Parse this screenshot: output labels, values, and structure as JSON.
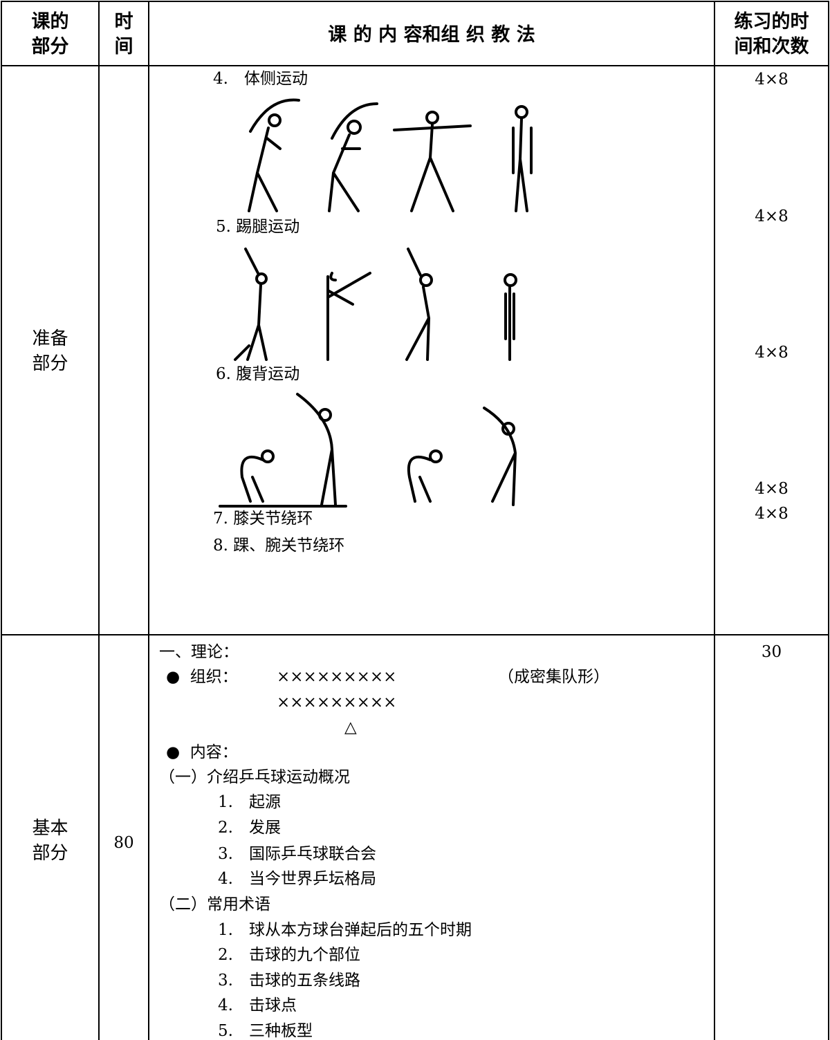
{
  "header": {
    "part": [
      "课的",
      "部分"
    ],
    "time": [
      "时",
      "间"
    ],
    "content": "课 的 内 容和组 织 教 法",
    "count": [
      "练习的时",
      "间和次数"
    ]
  },
  "rows": [
    {
      "part": [
        "准备",
        "部分"
      ],
      "content": [
        "4.　体侧运动",
        "5. 踢腿运动",
        "6. 腹背运动",
        "7. 膝关节绕环",
        "8. 踝、腕关节绕环"
      ],
      "counts": [
        "4×8",
        "4×8",
        "4×8",
        "4×8",
        "4×8"
      ]
    },
    {
      "part": [
        "基本",
        "部分"
      ],
      "time": "80",
      "content": [
        "一、理论：",
        "●  组织：",
        "×××××××××",
        "（成密集队形）",
        "×××××××××",
        "△",
        "●  内容：",
        "（一）介绍乒乓球运动概况",
        "1.　起源",
        "2.　发展",
        "3.　国际乒乓球联合会",
        "4.　当今世界乒坛格局",
        "（二）常用术语",
        "1.　球从本方球台弹起后的五个时期",
        "2.　击球的九个部位",
        "3.　击球的五条线路",
        "4.　击球点",
        "5.　三种板型"
      ],
      "counts": [
        "30"
      ]
    }
  ]
}
